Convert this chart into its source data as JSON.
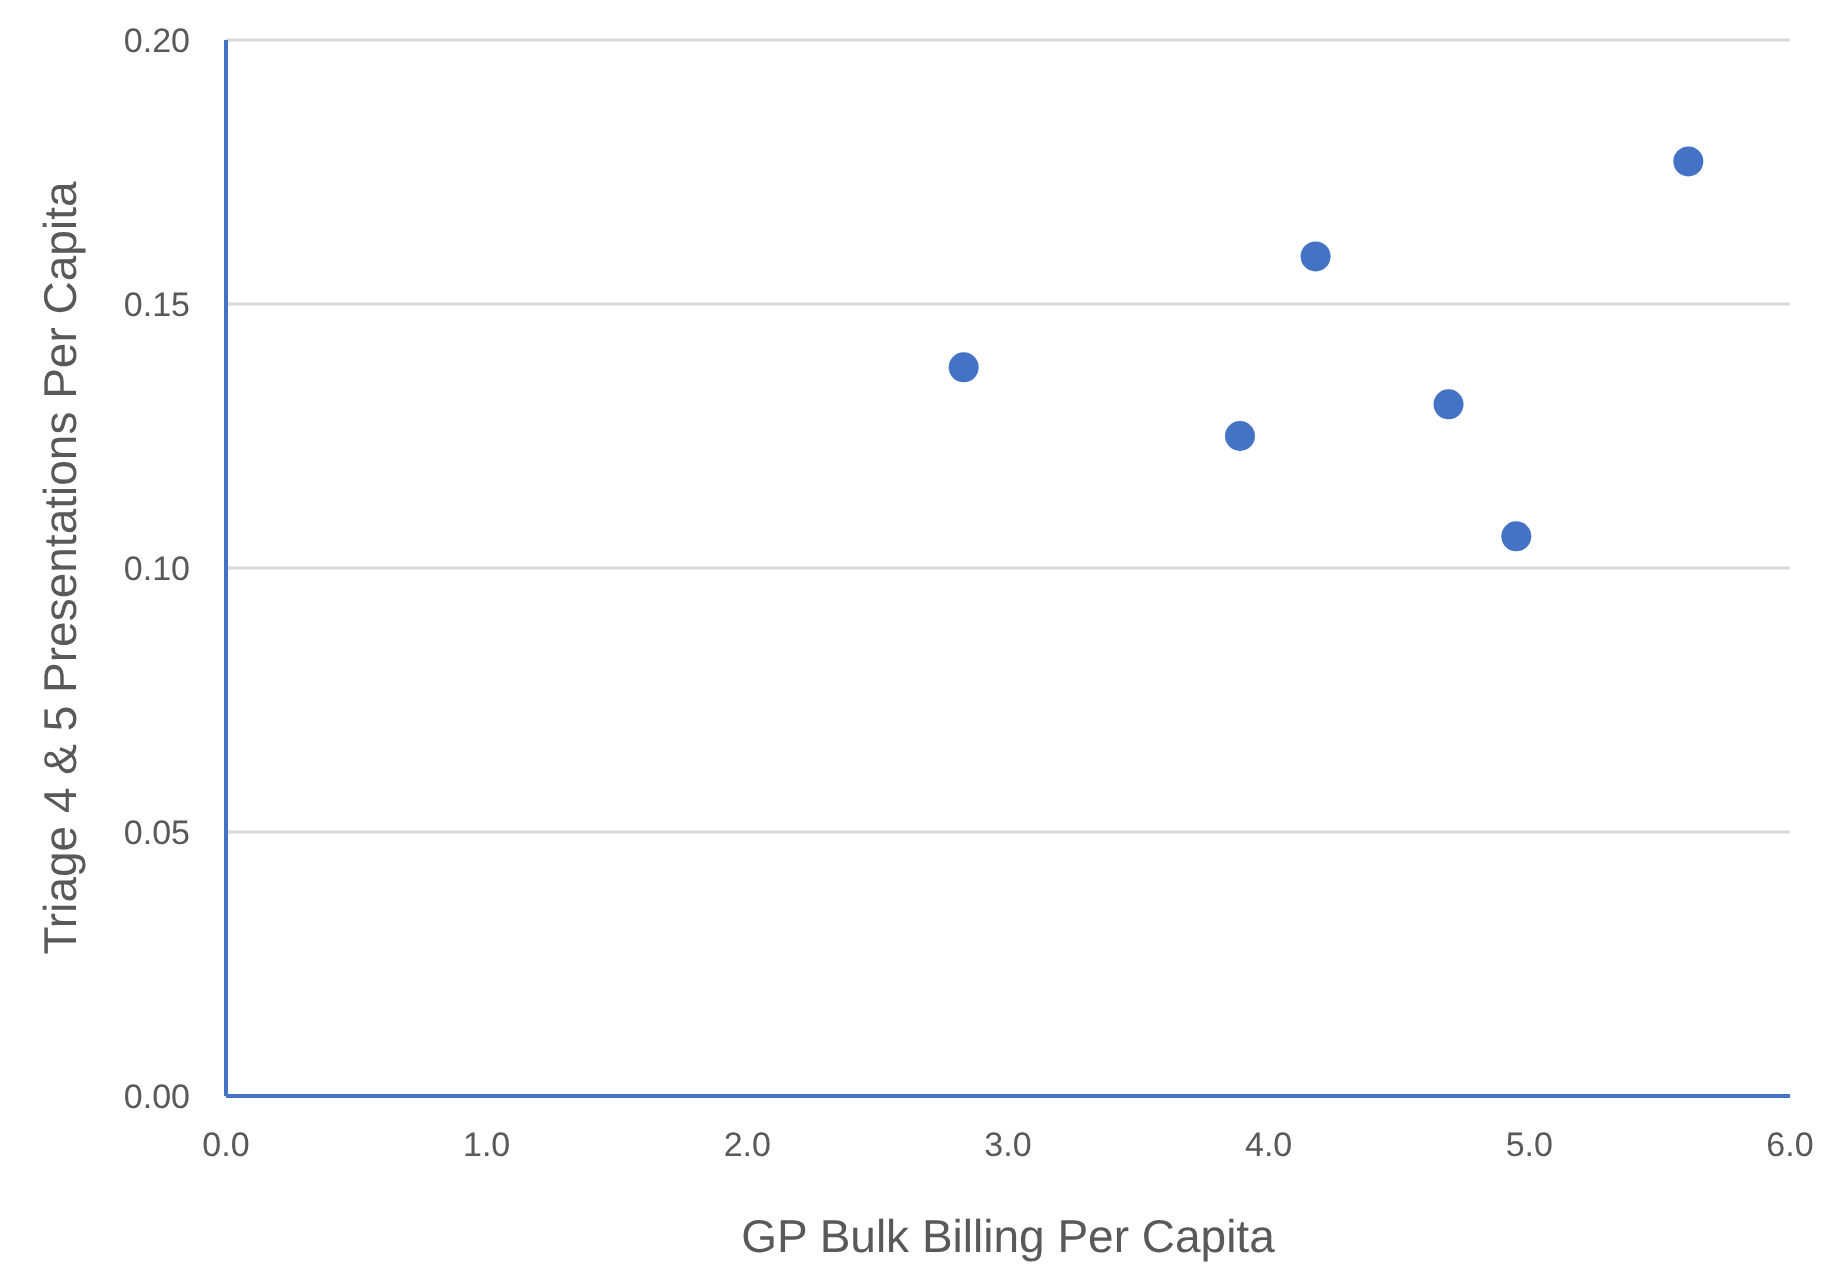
{
  "chart_data": {
    "type": "scatter",
    "xlabel": "GP Bulk Billing Per Capita",
    "ylabel": "Triage 4 & 5 Presentations Per Capita",
    "x": [
      2.83,
      3.89,
      4.18,
      4.69,
      4.95,
      5.61
    ],
    "values": [
      0.138,
      0.125,
      0.159,
      0.131,
      0.106,
      0.177
    ],
    "color": "#4472c4",
    "marker": "circle",
    "grid": "y",
    "legend": false,
    "xlim": [
      0,
      6
    ],
    "xticks": [
      {
        "value": 0,
        "label": "0.0"
      },
      {
        "value": 1,
        "label": "1.0"
      },
      {
        "value": 2,
        "label": "2.0"
      },
      {
        "value": 3,
        "label": "3.0"
      },
      {
        "value": 4,
        "label": "4.0"
      },
      {
        "value": 5,
        "label": "5.0"
      },
      {
        "value": 6,
        "label": "6.0"
      }
    ],
    "ylim": [
      0,
      0.2
    ],
    "yticks": [
      {
        "value": 0,
        "label": "0.00"
      },
      {
        "value": 0.05,
        "label": "0.05"
      },
      {
        "value": 0.1,
        "label": "0.10"
      },
      {
        "value": 0.15,
        "label": "0.15"
      },
      {
        "value": 0.2,
        "label": "0.20"
      }
    ]
  }
}
